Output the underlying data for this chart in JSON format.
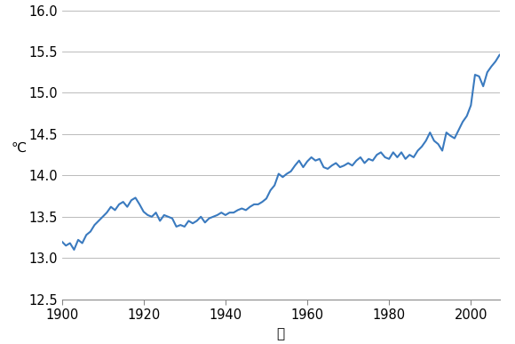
{
  "years": [
    1900,
    1901,
    1902,
    1903,
    1904,
    1905,
    1906,
    1907,
    1908,
    1909,
    1910,
    1911,
    1912,
    1913,
    1914,
    1915,
    1916,
    1917,
    1918,
    1919,
    1920,
    1921,
    1922,
    1923,
    1924,
    1925,
    1926,
    1927,
    1928,
    1929,
    1930,
    1931,
    1932,
    1933,
    1934,
    1935,
    1936,
    1937,
    1938,
    1939,
    1940,
    1941,
    1942,
    1943,
    1944,
    1945,
    1946,
    1947,
    1948,
    1949,
    1950,
    1951,
    1952,
    1953,
    1954,
    1955,
    1956,
    1957,
    1958,
    1959,
    1960,
    1961,
    1962,
    1963,
    1964,
    1965,
    1966,
    1967,
    1968,
    1969,
    1970,
    1971,
    1972,
    1973,
    1974,
    1975,
    1976,
    1977,
    1978,
    1979,
    1980,
    1981,
    1982,
    1983,
    1984,
    1985,
    1986,
    1987,
    1988,
    1989,
    1990,
    1991,
    1992,
    1993,
    1994,
    1995,
    1996,
    1997,
    1998,
    1999,
    2000,
    2001,
    2002,
    2003,
    2004,
    2005,
    2006,
    2007
  ],
  "temps": [
    13.2,
    13.15,
    13.18,
    13.1,
    13.22,
    13.18,
    13.28,
    13.32,
    13.4,
    13.45,
    13.5,
    13.55,
    13.62,
    13.58,
    13.65,
    13.68,
    13.62,
    13.7,
    13.73,
    13.65,
    13.56,
    13.52,
    13.5,
    13.55,
    13.45,
    13.52,
    13.5,
    13.48,
    13.38,
    13.4,
    13.38,
    13.45,
    13.42,
    13.45,
    13.5,
    13.43,
    13.48,
    13.5,
    13.52,
    13.55,
    13.52,
    13.55,
    13.55,
    13.58,
    13.6,
    13.58,
    13.62,
    13.65,
    13.65,
    13.68,
    13.72,
    13.82,
    13.88,
    14.02,
    13.98,
    14.02,
    14.05,
    14.12,
    14.18,
    14.1,
    14.17,
    14.22,
    14.18,
    14.2,
    14.1,
    14.08,
    14.12,
    14.15,
    14.1,
    14.12,
    14.15,
    14.12,
    14.18,
    14.22,
    14.15,
    14.2,
    14.18,
    14.25,
    14.28,
    14.22,
    14.2,
    14.28,
    14.22,
    14.28,
    14.2,
    14.25,
    14.22,
    14.3,
    14.35,
    14.42,
    14.52,
    14.42,
    14.38,
    14.3,
    14.52,
    14.48,
    14.45,
    14.55,
    14.65,
    14.72,
    14.85,
    15.22,
    15.2,
    15.08,
    15.25,
    15.32,
    15.38,
    15.46
  ],
  "line_color": "#3a7abf",
  "line_width": 1.5,
  "ylabel": "℃",
  "xlabel": "年",
  "xlim": [
    1900,
    2007
  ],
  "ylim": [
    12.5,
    16.0
  ],
  "yticks": [
    12.5,
    13.0,
    13.5,
    14.0,
    14.5,
    15.0,
    15.5,
    16.0
  ],
  "xticks": [
    1900,
    1920,
    1940,
    1960,
    1980,
    2000
  ],
  "grid_color": "#b0b0b0",
  "grid_linewidth": 0.6,
  "background_color": "#ffffff",
  "tick_label_fontsize": 10.5,
  "axis_label_fontsize": 11
}
